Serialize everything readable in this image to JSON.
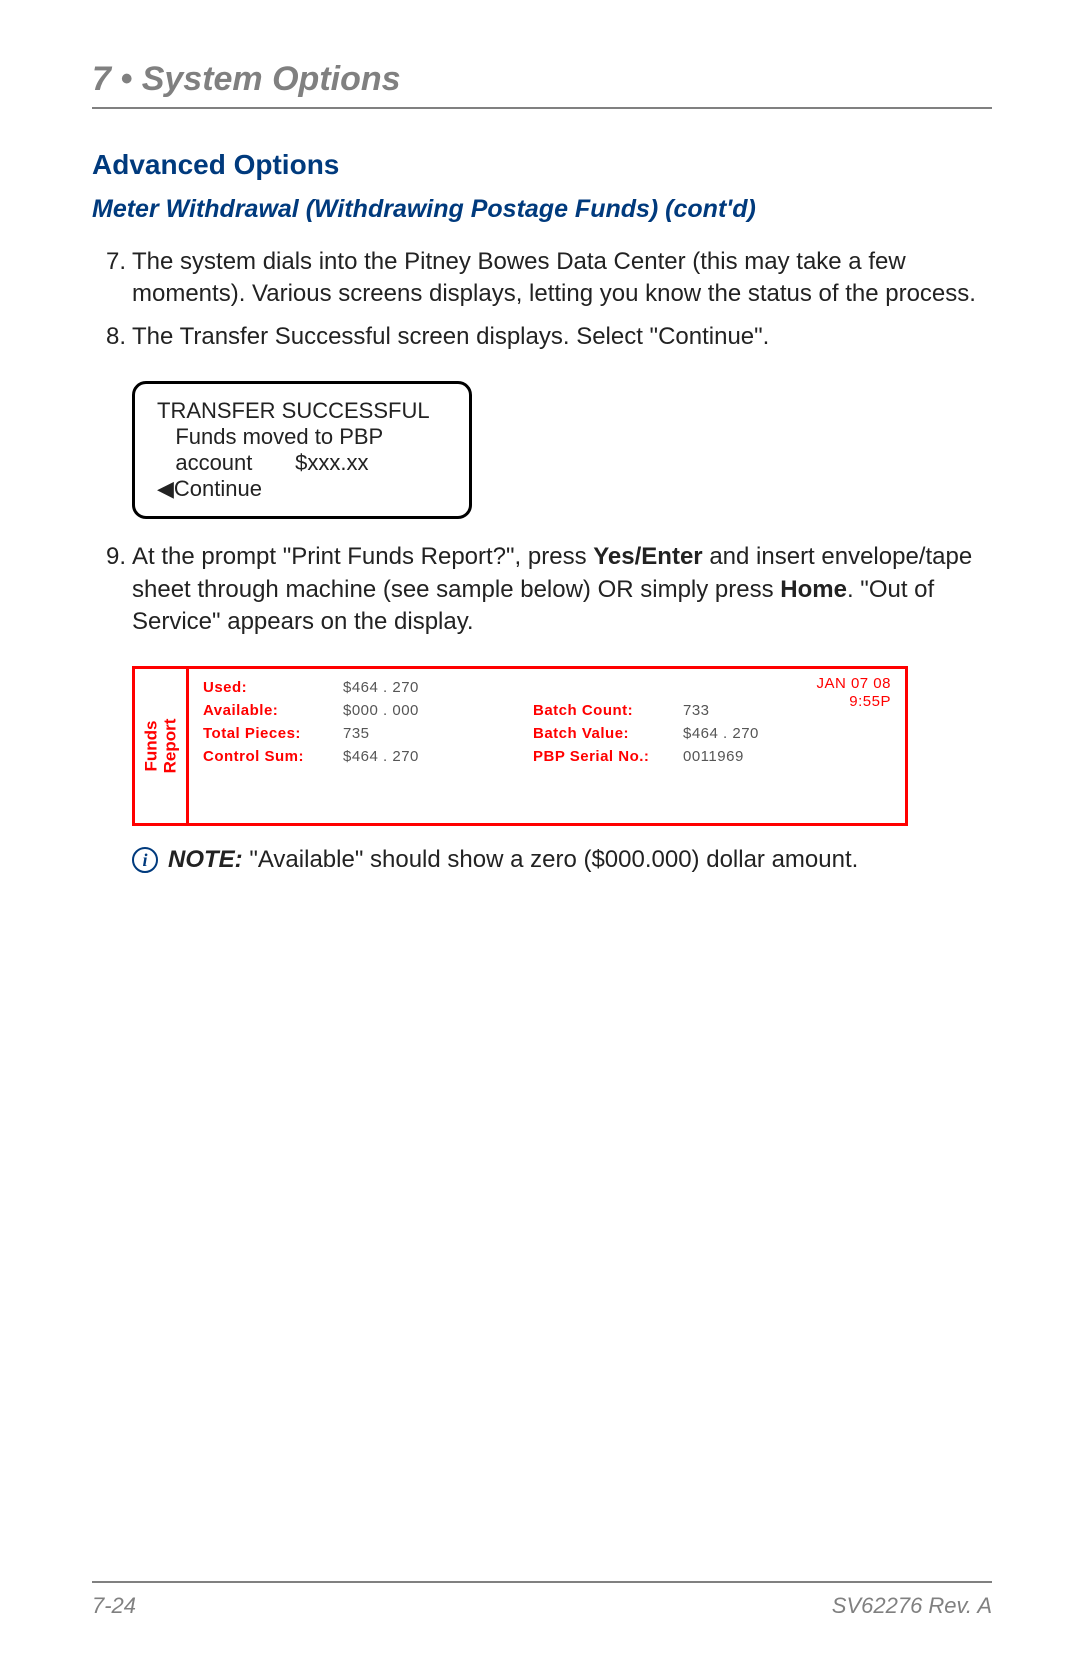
{
  "chapter": {
    "title": "7 • System Options"
  },
  "section": {
    "title": "Advanced Options"
  },
  "subsection": {
    "title": "Meter Withdrawal (Withdrawing Postage Funds) (cont'd)"
  },
  "steps": {
    "s7": {
      "num": "7.",
      "text": "The system dials into the Pitney Bowes Data Center (this may take a few moments). Various screens displays, letting you know the status of the process."
    },
    "s8": {
      "num": "8.",
      "text": "The Transfer Successful screen displays. Select \"Continue\"."
    },
    "s9": {
      "num": "9.",
      "pre": "At the prompt \"Print Funds Report?\", press ",
      "bold1": "Yes/Enter",
      "mid": " and insert envelope/tape sheet through machine (see sample below) OR simply press ",
      "bold2": "Home",
      "post": ". \"Out of Service\" appears on the display."
    }
  },
  "screen": {
    "l1": "TRANSFER SUCCESSFUL",
    "l2": "   Funds moved to PBP",
    "l3": "   account       $xxx.xx",
    "l4": "◀Continue"
  },
  "funds_report": {
    "side_label": "Funds\nReport",
    "date": "JAN 07 08",
    "time": "9:55P",
    "left": {
      "used_label": "Used:",
      "used_val": "$464 . 270",
      "avail_label": "Available:",
      "avail_val": "$000 . 000",
      "total_label": "Total Pieces:",
      "total_val": "735",
      "ctrl_label": "Control Sum:",
      "ctrl_val": "$464 . 270"
    },
    "right": {
      "bc_label": "Batch Count:",
      "bc_val": "733",
      "bv_label": "Batch Value:",
      "bv_val": "$464 . 270",
      "sn_label": "PBP Serial No.:",
      "sn_val": "0011969"
    },
    "colors": {
      "border": "#ff0000",
      "label": "#ff0000",
      "value": "#555555"
    }
  },
  "note": {
    "bold": "NOTE:",
    "text": " \"Available\" should show a zero ($000.000) dollar amount."
  },
  "footer": {
    "page": "7-24",
    "rev": "SV62276 Rev. A"
  }
}
